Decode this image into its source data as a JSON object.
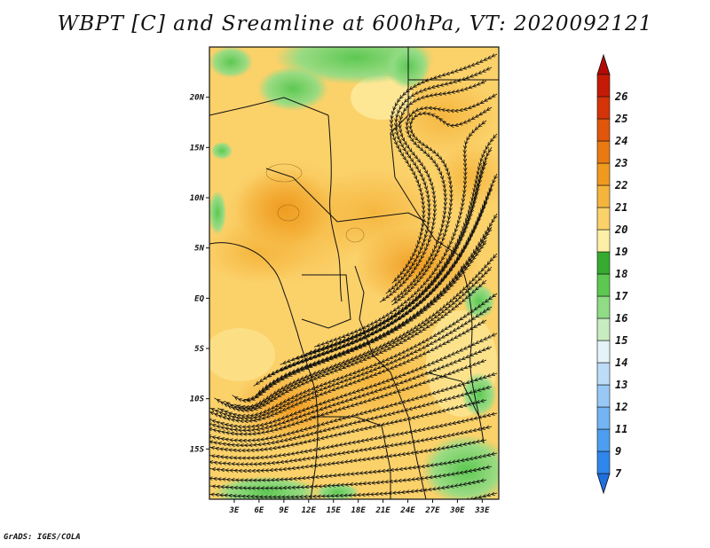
{
  "title": "WBPT [C] and Sreamline at 600hPa, VT: 2020092121",
  "credit": "GrADS: IGES/COLA",
  "map": {
    "lon_range": [
      0,
      35
    ],
    "lat_range": [
      -20,
      25
    ],
    "x_tick_labels": [
      "3E",
      "6E",
      "9E",
      "12E",
      "15E",
      "18E",
      "21E",
      "24E",
      "27E",
      "30E",
      "33E"
    ],
    "y_tick_labels": [
      "20N",
      "15N",
      "10N",
      "5N",
      "EQ",
      "5S",
      "10S",
      "15S"
    ]
  },
  "colorbar": {
    "labels": [
      "7",
      "9",
      "11",
      "12",
      "13",
      "14",
      "15",
      "16",
      "17",
      "18",
      "19",
      "20",
      "21",
      "22",
      "23",
      "24",
      "25",
      "26"
    ],
    "colors": [
      "#1e6fe0",
      "#2f86ec",
      "#4d9ef0",
      "#73b4f4",
      "#98c9f6",
      "#bcdcf8",
      "#e3f3f8",
      "#c6ecc0",
      "#8fdc85",
      "#5cc852",
      "#36ab2f",
      "#fdf0a6",
      "#fbd16a",
      "#f5b53d",
      "#ef9a1e",
      "#e97a12",
      "#e0560b",
      "#d43408",
      "#c41a06",
      "#b40a04"
    ]
  }
}
